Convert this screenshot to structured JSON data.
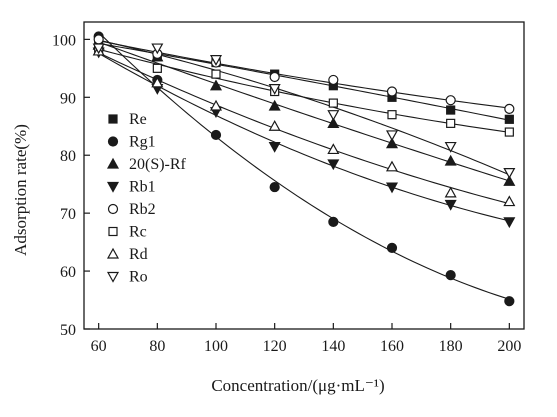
{
  "chart_data": {
    "type": "scatter",
    "title": "",
    "xlabel": "Concentration/(μg·mL⁻¹)",
    "ylabel": "Adsorption rate(%)",
    "xlim": [
      55,
      205
    ],
    "ylim": [
      50,
      103
    ],
    "xticks": [
      60,
      80,
      100,
      120,
      140,
      160,
      180,
      200
    ],
    "yticks": [
      50,
      60,
      70,
      80,
      90,
      100
    ],
    "grid": false,
    "legend_position": "left",
    "x": [
      60,
      80,
      100,
      120,
      140,
      160,
      180,
      200
    ],
    "series": [
      {
        "name": "Re",
        "marker": "square-filled",
        "values": [
          99.5,
          97.0,
          96.0,
          94.0,
          92.0,
          90.0,
          87.8,
          86.2
        ]
      },
      {
        "name": "Rg1",
        "marker": "circle-filled",
        "values": [
          100.5,
          93.0,
          83.5,
          74.5,
          68.5,
          64.0,
          59.3,
          54.8
        ]
      },
      {
        "name": "20(S)-Rf",
        "marker": "triangle-up-filled",
        "values": [
          99.0,
          97.0,
          92.0,
          88.5,
          85.5,
          82.0,
          79.0,
          75.5
        ]
      },
      {
        "name": "Rb1",
        "marker": "triangle-down-filled",
        "values": [
          97.8,
          91.5,
          87.5,
          81.5,
          78.5,
          74.5,
          71.5,
          68.5
        ]
      },
      {
        "name": "Rb2",
        "marker": "circle-open",
        "values": [
          100.0,
          97.5,
          96.0,
          93.5,
          93.0,
          91.0,
          89.5,
          88.0
        ]
      },
      {
        "name": "Rc",
        "marker": "square-open",
        "values": [
          98.5,
          95.0,
          94.0,
          91.0,
          89.0,
          87.0,
          85.5,
          84.0
        ]
      },
      {
        "name": "Rd",
        "marker": "triangle-up-open",
        "values": [
          98.0,
          92.5,
          88.5,
          85.0,
          81.0,
          78.0,
          73.5,
          72.0
        ]
      },
      {
        "name": "Ro",
        "marker": "triangle-down-open",
        "values": [
          98.5,
          98.5,
          96.5,
          91.5,
          87.0,
          83.5,
          81.5,
          77.0
        ]
      }
    ]
  }
}
